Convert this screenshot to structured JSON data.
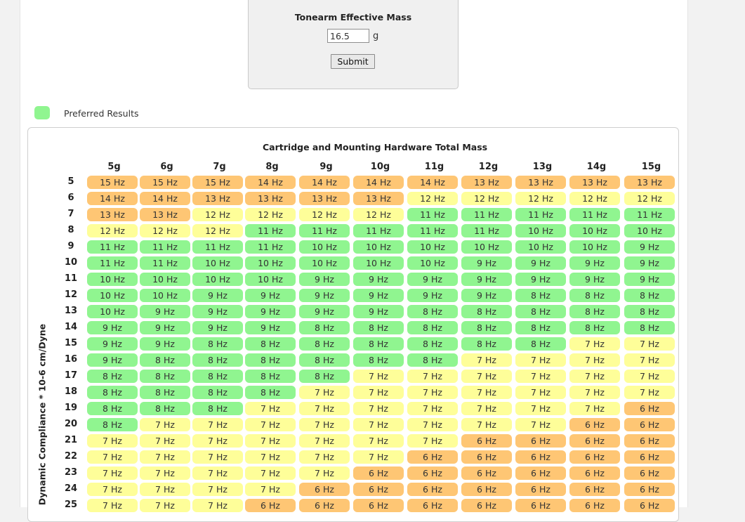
{
  "form": {
    "title": "Tonearm Effective Mass",
    "mass_value": "16.5",
    "unit": "g",
    "submit_label": "Submit"
  },
  "legend": {
    "label": "Preferred Results",
    "color": "#90f590"
  },
  "grid": {
    "title": "Cartridge and Mounting Hardware Total Mass",
    "ylabel": "Dynamic Compliance * 10-6 cm/Dyne",
    "colors": {
      "green": "#90f590",
      "yellow": "#fefe99",
      "orange": "#fec674"
    },
    "columns": [
      "5g",
      "6g",
      "7g",
      "8g",
      "9g",
      "10g",
      "11g",
      "12g",
      "13g",
      "14g",
      "15g"
    ],
    "rows": [
      {
        "label": "5",
        "cells": [
          "15 Hz",
          "15 Hz",
          "15 Hz",
          "14 Hz",
          "14 Hz",
          "14 Hz",
          "14 Hz",
          "13 Hz",
          "13 Hz",
          "13 Hz",
          "13 Hz"
        ],
        "tones": [
          "o",
          "o",
          "o",
          "o",
          "o",
          "o",
          "o",
          "o",
          "o",
          "o",
          "o"
        ]
      },
      {
        "label": "6",
        "cells": [
          "14 Hz",
          "14 Hz",
          "13 Hz",
          "13 Hz",
          "13 Hz",
          "13 Hz",
          "12 Hz",
          "12 Hz",
          "12 Hz",
          "12 Hz",
          "12 Hz"
        ],
        "tones": [
          "o",
          "o",
          "o",
          "o",
          "o",
          "o",
          "y",
          "y",
          "y",
          "y",
          "y"
        ]
      },
      {
        "label": "7",
        "cells": [
          "13 Hz",
          "13 Hz",
          "12 Hz",
          "12 Hz",
          "12 Hz",
          "12 Hz",
          "11 Hz",
          "11 Hz",
          "11 Hz",
          "11 Hz",
          "11 Hz"
        ],
        "tones": [
          "o",
          "o",
          "y",
          "y",
          "y",
          "y",
          "g",
          "g",
          "g",
          "g",
          "g"
        ]
      },
      {
        "label": "8",
        "cells": [
          "12 Hz",
          "12 Hz",
          "12 Hz",
          "11 Hz",
          "11 Hz",
          "11 Hz",
          "11 Hz",
          "11 Hz",
          "10 Hz",
          "10 Hz",
          "10 Hz"
        ],
        "tones": [
          "y",
          "y",
          "y",
          "g",
          "g",
          "g",
          "g",
          "g",
          "g",
          "g",
          "g"
        ]
      },
      {
        "label": "9",
        "cells": [
          "11 Hz",
          "11 Hz",
          "11 Hz",
          "11 Hz",
          "10 Hz",
          "10 Hz",
          "10 Hz",
          "10 Hz",
          "10 Hz",
          "10 Hz",
          "9 Hz"
        ],
        "tones": [
          "g",
          "g",
          "g",
          "g",
          "g",
          "g",
          "g",
          "g",
          "g",
          "g",
          "g"
        ]
      },
      {
        "label": "10",
        "cells": [
          "11 Hz",
          "11 Hz",
          "10 Hz",
          "10 Hz",
          "10 Hz",
          "10 Hz",
          "10 Hz",
          "9 Hz",
          "9 Hz",
          "9 Hz",
          "9 Hz"
        ],
        "tones": [
          "g",
          "g",
          "g",
          "g",
          "g",
          "g",
          "g",
          "g",
          "g",
          "g",
          "g"
        ]
      },
      {
        "label": "11",
        "cells": [
          "10 Hz",
          "10 Hz",
          "10 Hz",
          "10 Hz",
          "9 Hz",
          "9 Hz",
          "9 Hz",
          "9 Hz",
          "9 Hz",
          "9 Hz",
          "9 Hz"
        ],
        "tones": [
          "g",
          "g",
          "g",
          "g",
          "g",
          "g",
          "g",
          "g",
          "g",
          "g",
          "g"
        ]
      },
      {
        "label": "12",
        "cells": [
          "10 Hz",
          "10 Hz",
          "9 Hz",
          "9 Hz",
          "9 Hz",
          "9 Hz",
          "9 Hz",
          "9 Hz",
          "8 Hz",
          "8 Hz",
          "8 Hz"
        ],
        "tones": [
          "g",
          "g",
          "g",
          "g",
          "g",
          "g",
          "g",
          "g",
          "g",
          "g",
          "g"
        ]
      },
      {
        "label": "13",
        "cells": [
          "10 Hz",
          "9 Hz",
          "9 Hz",
          "9 Hz",
          "9 Hz",
          "9 Hz",
          "8 Hz",
          "8 Hz",
          "8 Hz",
          "8 Hz",
          "8 Hz"
        ],
        "tones": [
          "g",
          "g",
          "g",
          "g",
          "g",
          "g",
          "g",
          "g",
          "g",
          "g",
          "g"
        ]
      },
      {
        "label": "14",
        "cells": [
          "9 Hz",
          "9 Hz",
          "9 Hz",
          "9 Hz",
          "8 Hz",
          "8 Hz",
          "8 Hz",
          "8 Hz",
          "8 Hz",
          "8 Hz",
          "8 Hz"
        ],
        "tones": [
          "g",
          "g",
          "g",
          "g",
          "g",
          "g",
          "g",
          "g",
          "g",
          "g",
          "g"
        ]
      },
      {
        "label": "15",
        "cells": [
          "9 Hz",
          "9 Hz",
          "8 Hz",
          "8 Hz",
          "8 Hz",
          "8 Hz",
          "8 Hz",
          "8 Hz",
          "8 Hz",
          "7 Hz",
          "7 Hz"
        ],
        "tones": [
          "g",
          "g",
          "g",
          "g",
          "g",
          "g",
          "g",
          "g",
          "g",
          "y",
          "y"
        ]
      },
      {
        "label": "16",
        "cells": [
          "9 Hz",
          "8 Hz",
          "8 Hz",
          "8 Hz",
          "8 Hz",
          "8 Hz",
          "8 Hz",
          "7 Hz",
          "7 Hz",
          "7 Hz",
          "7 Hz"
        ],
        "tones": [
          "g",
          "g",
          "g",
          "g",
          "g",
          "g",
          "g",
          "y",
          "y",
          "y",
          "y"
        ]
      },
      {
        "label": "17",
        "cells": [
          "8 Hz",
          "8 Hz",
          "8 Hz",
          "8 Hz",
          "8 Hz",
          "7 Hz",
          "7 Hz",
          "7 Hz",
          "7 Hz",
          "7 Hz",
          "7 Hz"
        ],
        "tones": [
          "g",
          "g",
          "g",
          "g",
          "g",
          "y",
          "y",
          "y",
          "y",
          "y",
          "y"
        ]
      },
      {
        "label": "18",
        "cells": [
          "8 Hz",
          "8 Hz",
          "8 Hz",
          "8 Hz",
          "7 Hz",
          "7 Hz",
          "7 Hz",
          "7 Hz",
          "7 Hz",
          "7 Hz",
          "7 Hz"
        ],
        "tones": [
          "g",
          "g",
          "g",
          "g",
          "y",
          "y",
          "y",
          "y",
          "y",
          "y",
          "y"
        ]
      },
      {
        "label": "19",
        "cells": [
          "8 Hz",
          "8 Hz",
          "8 Hz",
          "7 Hz",
          "7 Hz",
          "7 Hz",
          "7 Hz",
          "7 Hz",
          "7 Hz",
          "7 Hz",
          "6 Hz"
        ],
        "tones": [
          "g",
          "g",
          "g",
          "y",
          "y",
          "y",
          "y",
          "y",
          "y",
          "y",
          "o"
        ]
      },
      {
        "label": "20",
        "cells": [
          "8 Hz",
          "7 Hz",
          "7 Hz",
          "7 Hz",
          "7 Hz",
          "7 Hz",
          "7 Hz",
          "7 Hz",
          "7 Hz",
          "6 Hz",
          "6 Hz"
        ],
        "tones": [
          "g",
          "y",
          "y",
          "y",
          "y",
          "y",
          "y",
          "y",
          "y",
          "o",
          "o"
        ]
      },
      {
        "label": "21",
        "cells": [
          "7 Hz",
          "7 Hz",
          "7 Hz",
          "7 Hz",
          "7 Hz",
          "7 Hz",
          "7 Hz",
          "6 Hz",
          "6 Hz",
          "6 Hz",
          "6 Hz"
        ],
        "tones": [
          "y",
          "y",
          "y",
          "y",
          "y",
          "y",
          "y",
          "o",
          "o",
          "o",
          "o"
        ]
      },
      {
        "label": "22",
        "cells": [
          "7 Hz",
          "7 Hz",
          "7 Hz",
          "7 Hz",
          "7 Hz",
          "7 Hz",
          "6 Hz",
          "6 Hz",
          "6 Hz",
          "6 Hz",
          "6 Hz"
        ],
        "tones": [
          "y",
          "y",
          "y",
          "y",
          "y",
          "y",
          "o",
          "o",
          "o",
          "o",
          "o"
        ]
      },
      {
        "label": "23",
        "cells": [
          "7 Hz",
          "7 Hz",
          "7 Hz",
          "7 Hz",
          "7 Hz",
          "6 Hz",
          "6 Hz",
          "6 Hz",
          "6 Hz",
          "6 Hz",
          "6 Hz"
        ],
        "tones": [
          "y",
          "y",
          "y",
          "y",
          "y",
          "o",
          "o",
          "o",
          "o",
          "o",
          "o"
        ]
      },
      {
        "label": "24",
        "cells": [
          "7 Hz",
          "7 Hz",
          "7 Hz",
          "7 Hz",
          "6 Hz",
          "6 Hz",
          "6 Hz",
          "6 Hz",
          "6 Hz",
          "6 Hz",
          "6 Hz"
        ],
        "tones": [
          "y",
          "y",
          "y",
          "y",
          "o",
          "o",
          "o",
          "o",
          "o",
          "o",
          "o"
        ]
      },
      {
        "label": "25",
        "cells": [
          "7 Hz",
          "7 Hz",
          "7 Hz",
          "6 Hz",
          "6 Hz",
          "6 Hz",
          "6 Hz",
          "6 Hz",
          "6 Hz",
          "6 Hz",
          "6 Hz"
        ],
        "tones": [
          "y",
          "y",
          "y",
          "o",
          "o",
          "o",
          "o",
          "o",
          "o",
          "o",
          "o"
        ]
      }
    ]
  }
}
